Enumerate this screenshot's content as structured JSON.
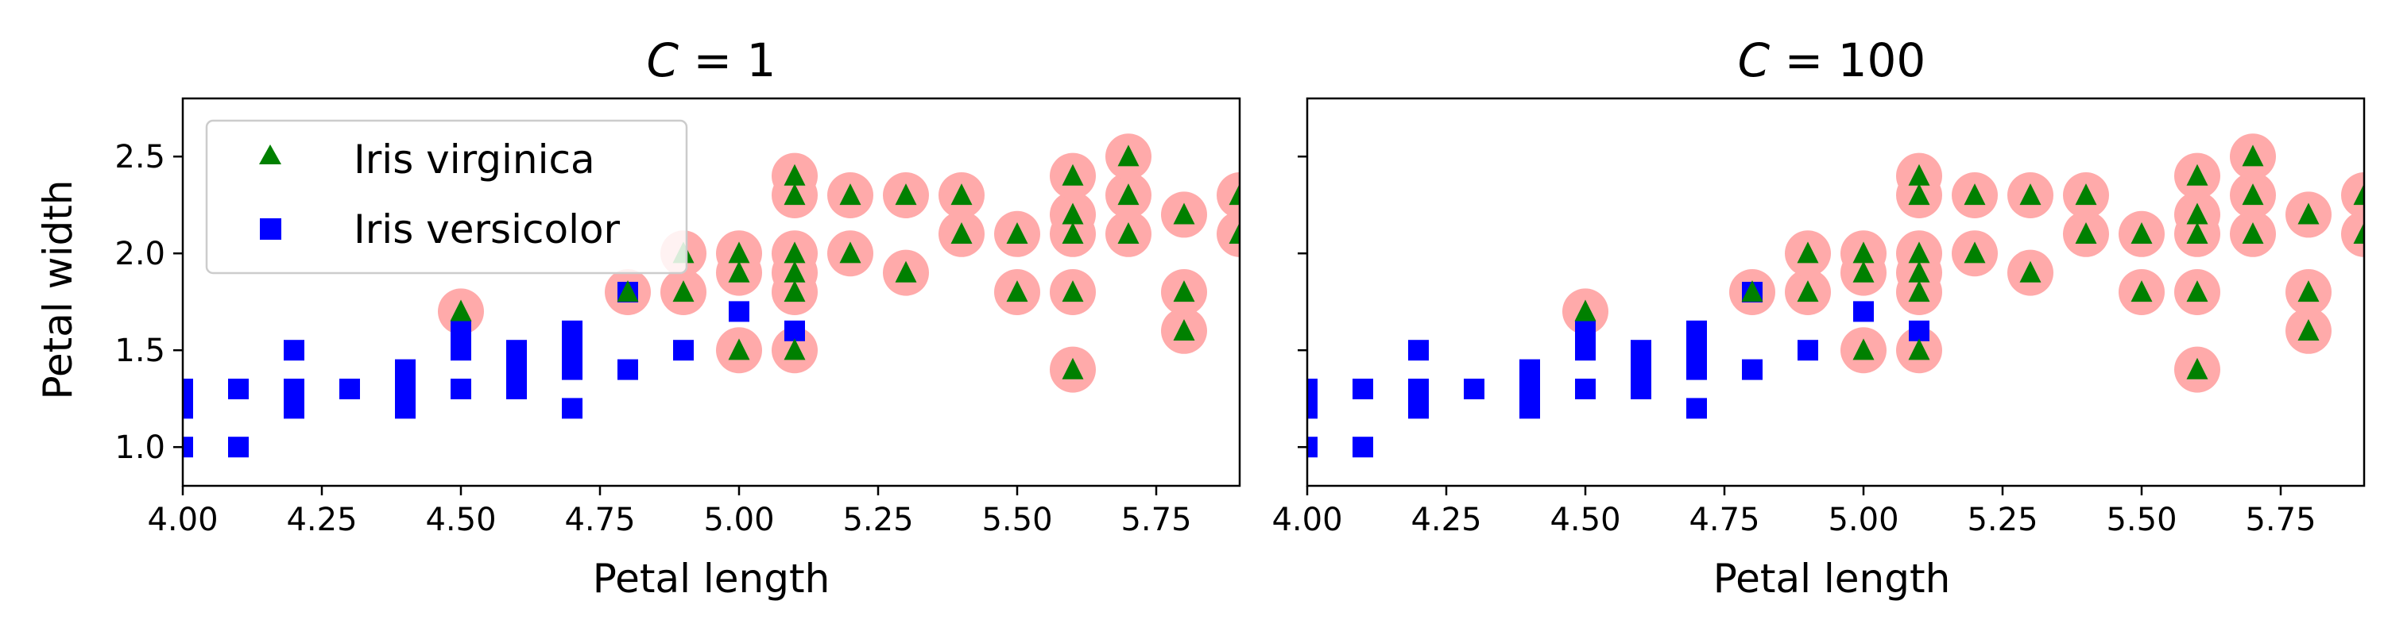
{
  "chart_data": [
    {
      "type": "scatter",
      "title": "C = 1",
      "title_parts": {
        "var": "C",
        "eq": " = ",
        "val": "1"
      },
      "xlabel": "Petal length",
      "ylabel": "Petal width",
      "xlim": [
        4.0,
        5.9
      ],
      "ylim": [
        0.8,
        2.8
      ],
      "xticks": [
        "4.00",
        "4.25",
        "4.50",
        "4.75",
        "5.00",
        "5.25",
        "5.50",
        "5.75"
      ],
      "yticks": [
        "1.0",
        "1.5",
        "2.0",
        "2.5"
      ],
      "grid": false,
      "legend": {
        "placement": "upper-left",
        "entries": [
          {
            "name": "Iris virginica",
            "marker": "triangle",
            "color": "#008000"
          },
          {
            "name": "Iris versicolor",
            "marker": "square",
            "color": "#0000ff"
          }
        ]
      },
      "support_vectors": [
        [
          4.5,
          1.7
        ],
        [
          4.8,
          1.8
        ],
        [
          4.9,
          1.8
        ],
        [
          4.9,
          2.0
        ],
        [
          5.0,
          1.5
        ],
        [
          5.0,
          1.9
        ],
        [
          5.0,
          2.0
        ],
        [
          5.1,
          1.5
        ],
        [
          5.1,
          1.8
        ],
        [
          5.1,
          1.9
        ],
        [
          5.1,
          2.0
        ],
        [
          5.1,
          2.3
        ],
        [
          5.1,
          2.4
        ],
        [
          5.2,
          2.0
        ],
        [
          5.2,
          2.3
        ],
        [
          5.3,
          1.9
        ],
        [
          5.3,
          2.3
        ],
        [
          5.4,
          2.1
        ],
        [
          5.4,
          2.3
        ],
        [
          5.5,
          1.8
        ],
        [
          5.5,
          2.1
        ],
        [
          5.6,
          1.4
        ],
        [
          5.6,
          1.8
        ],
        [
          5.6,
          2.1
        ],
        [
          5.6,
          2.2
        ],
        [
          5.6,
          2.4
        ],
        [
          5.7,
          2.1
        ],
        [
          5.7,
          2.3
        ],
        [
          5.7,
          2.5
        ],
        [
          5.8,
          1.6
        ],
        [
          5.8,
          1.8
        ],
        [
          5.8,
          2.2
        ],
        [
          5.9,
          2.1
        ],
        [
          5.9,
          2.3
        ]
      ]
    },
    {
      "type": "scatter",
      "title": "C = 100",
      "title_parts": {
        "var": "C",
        "eq": " = ",
        "val": "100"
      },
      "xlabel": "Petal length",
      "ylabel": "",
      "xlim": [
        4.0,
        5.9
      ],
      "ylim": [
        0.8,
        2.8
      ],
      "xticks": [
        "4.00",
        "4.25",
        "4.50",
        "4.75",
        "5.00",
        "5.25",
        "5.50",
        "5.75"
      ],
      "yticks": [
        "1.0",
        "1.5",
        "2.0",
        "2.5"
      ],
      "show_ytick_labels": false,
      "grid": false,
      "support_vectors": [
        [
          4.5,
          1.7
        ],
        [
          4.8,
          1.8
        ],
        [
          4.9,
          1.8
        ],
        [
          4.9,
          2.0
        ],
        [
          5.0,
          1.5
        ],
        [
          5.0,
          1.9
        ],
        [
          5.0,
          2.0
        ],
        [
          5.1,
          1.5
        ],
        [
          5.1,
          1.8
        ],
        [
          5.1,
          1.9
        ],
        [
          5.1,
          2.0
        ],
        [
          5.1,
          2.3
        ],
        [
          5.1,
          2.4
        ],
        [
          5.2,
          2.0
        ],
        [
          5.2,
          2.3
        ],
        [
          5.3,
          1.9
        ],
        [
          5.3,
          2.3
        ],
        [
          5.4,
          2.1
        ],
        [
          5.4,
          2.3
        ],
        [
          5.5,
          1.8
        ],
        [
          5.5,
          2.1
        ],
        [
          5.6,
          1.4
        ],
        [
          5.6,
          1.8
        ],
        [
          5.6,
          2.1
        ],
        [
          5.6,
          2.2
        ],
        [
          5.6,
          2.4
        ],
        [
          5.7,
          2.1
        ],
        [
          5.7,
          2.3
        ],
        [
          5.7,
          2.5
        ],
        [
          5.8,
          1.6
        ],
        [
          5.8,
          1.8
        ],
        [
          5.8,
          2.2
        ],
        [
          5.9,
          2.1
        ],
        [
          5.9,
          2.3
        ]
      ]
    }
  ],
  "series": {
    "virginica": {
      "name": "Iris virginica",
      "color": "#008000",
      "points": [
        [
          4.5,
          1.7
        ],
        [
          4.8,
          1.8
        ],
        [
          4.9,
          1.8
        ],
        [
          4.9,
          2.0
        ],
        [
          5.0,
          1.5
        ],
        [
          5.0,
          1.9
        ],
        [
          5.0,
          2.0
        ],
        [
          5.1,
          1.5
        ],
        [
          5.1,
          1.8
        ],
        [
          5.1,
          1.9
        ],
        [
          5.1,
          2.0
        ],
        [
          5.1,
          2.3
        ],
        [
          5.1,
          2.4
        ],
        [
          5.2,
          2.0
        ],
        [
          5.2,
          2.3
        ],
        [
          5.3,
          1.9
        ],
        [
          5.3,
          2.3
        ],
        [
          5.4,
          2.1
        ],
        [
          5.4,
          2.3
        ],
        [
          5.5,
          1.8
        ],
        [
          5.5,
          2.1
        ],
        [
          5.6,
          1.4
        ],
        [
          5.6,
          1.8
        ],
        [
          5.6,
          2.1
        ],
        [
          5.6,
          2.2
        ],
        [
          5.6,
          2.4
        ],
        [
          5.7,
          2.1
        ],
        [
          5.7,
          2.3
        ],
        [
          5.7,
          2.5
        ],
        [
          5.8,
          1.6
        ],
        [
          5.8,
          1.8
        ],
        [
          5.8,
          2.2
        ],
        [
          5.9,
          2.1
        ],
        [
          5.9,
          2.3
        ]
      ]
    },
    "versicolor": {
      "name": "Iris versicolor",
      "color": "#0000ff",
      "points": [
        [
          4.0,
          1.0
        ],
        [
          4.0,
          1.2
        ],
        [
          4.0,
          1.3
        ],
        [
          4.1,
          1.0
        ],
        [
          4.1,
          1.3
        ],
        [
          4.2,
          1.2
        ],
        [
          4.2,
          1.3
        ],
        [
          4.2,
          1.5
        ],
        [
          4.3,
          1.3
        ],
        [
          4.4,
          1.2
        ],
        [
          4.4,
          1.3
        ],
        [
          4.4,
          1.4
        ],
        [
          4.5,
          1.3
        ],
        [
          4.5,
          1.5
        ],
        [
          4.5,
          1.6
        ],
        [
          4.6,
          1.3
        ],
        [
          4.6,
          1.4
        ],
        [
          4.6,
          1.5
        ],
        [
          4.7,
          1.2
        ],
        [
          4.7,
          1.4
        ],
        [
          4.7,
          1.5
        ],
        [
          4.7,
          1.6
        ],
        [
          4.8,
          1.4
        ],
        [
          4.8,
          1.8
        ],
        [
          4.9,
          1.5
        ],
        [
          5.0,
          1.7
        ],
        [
          5.1,
          1.6
        ]
      ]
    }
  },
  "colors": {
    "support_vector_halo": "#ffaaaa",
    "virginica": "#008000",
    "versicolor": "#0000ff"
  }
}
